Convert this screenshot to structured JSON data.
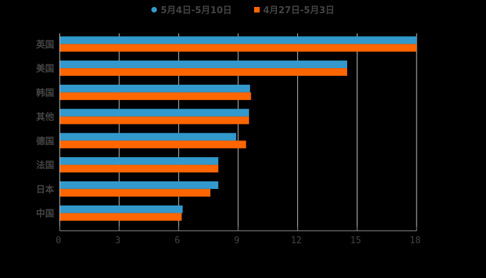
{
  "chart_data": {
    "type": "bar",
    "orientation": "horizontal",
    "title": "",
    "categories": [
      "英国",
      "美国",
      "韩国",
      "其他",
      "德国",
      "法国",
      "日本",
      "中国"
    ],
    "series": [
      {
        "name": "5月4日-5月10日",
        "color": "#3399cc",
        "values": [
          18,
          14.5,
          9.6,
          9.55,
          8.9,
          8.0,
          8.0,
          6.2
        ]
      },
      {
        "name": "4月27日-5月3日",
        "color": "#ff6600",
        "values": [
          18,
          14.5,
          9.65,
          9.55,
          9.4,
          8.0,
          7.6,
          6.15
        ]
      }
    ],
    "xlabel": "",
    "ylabel": "",
    "xlim": [
      0,
      18
    ],
    "xticks": [
      "0",
      "3",
      "6",
      "9",
      "12",
      "15",
      "18"
    ],
    "grid": true,
    "legend_position": "top"
  },
  "legend": {
    "series0": "5月4日-5月10日",
    "series1": "4月27日-5月3日"
  }
}
